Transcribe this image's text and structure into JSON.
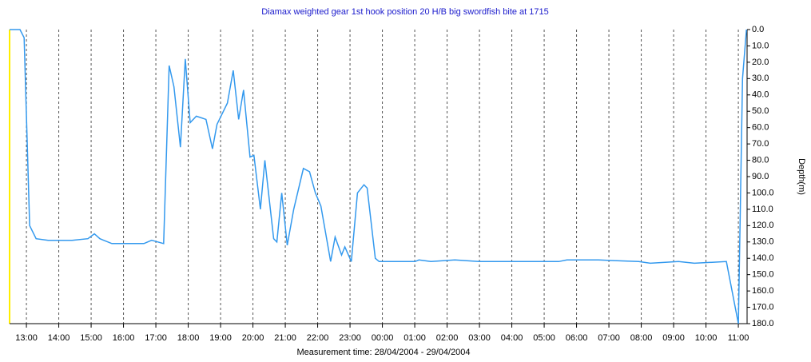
{
  "chart_data": {
    "type": "line",
    "title": "Diamax weighted gear 1st hook position 20 H/B big swordfish bite at 1715",
    "x_label": "Measurement time: 28/04/2004 - 29/04/2004",
    "y_label": "Depth(m)",
    "color": "#3399ee",
    "y_inverted": true,
    "grid": true,
    "xlim": [
      12.48,
      35.27
    ],
    "ylim": [
      0,
      180
    ],
    "xticks": [
      {
        "value": 13,
        "label": "13:00"
      },
      {
        "value": 14,
        "label": "14:00"
      },
      {
        "value": 15,
        "label": "15:00"
      },
      {
        "value": 16,
        "label": "16:00"
      },
      {
        "value": 17,
        "label": "17:00"
      },
      {
        "value": 18,
        "label": "18:00"
      },
      {
        "value": 19,
        "label": "19:00"
      },
      {
        "value": 20,
        "label": "20:00"
      },
      {
        "value": 21,
        "label": "21:00"
      },
      {
        "value": 22,
        "label": "22:00"
      },
      {
        "value": 23,
        "label": "23:00"
      },
      {
        "value": 24,
        "label": "00:00"
      },
      {
        "value": 25,
        "label": "01:00"
      },
      {
        "value": 26,
        "label": "02:00"
      },
      {
        "value": 27,
        "label": "03:00"
      },
      {
        "value": 28,
        "label": "04:00"
      },
      {
        "value": 29,
        "label": "05:00"
      },
      {
        "value": 30,
        "label": "06:00"
      },
      {
        "value": 31,
        "label": "07:00"
      },
      {
        "value": 32,
        "label": "08:00"
      },
      {
        "value": 33,
        "label": "09:00"
      },
      {
        "value": 34,
        "label": "10:00"
      },
      {
        "value": 35,
        "label": "11:00"
      }
    ],
    "yticks": [
      {
        "value": 0,
        "label": "0.0"
      },
      {
        "value": 10,
        "label": "10.0"
      },
      {
        "value": 20,
        "label": "20.0"
      },
      {
        "value": 30,
        "label": "30.0"
      },
      {
        "value": 40,
        "label": "40.0"
      },
      {
        "value": 50,
        "label": "50.0"
      },
      {
        "value": 60,
        "label": "60.0"
      },
      {
        "value": 70,
        "label": "70.0"
      },
      {
        "value": 80,
        "label": "80.0"
      },
      {
        "value": 90,
        "label": "90.0"
      },
      {
        "value": 100,
        "label": "100.0"
      },
      {
        "value": 110,
        "label": "110.0"
      },
      {
        "value": 120,
        "label": "120.0"
      },
      {
        "value": 130,
        "label": "130.0"
      },
      {
        "value": 140,
        "label": "140.0"
      },
      {
        "value": 150,
        "label": "150.0"
      },
      {
        "value": 160,
        "label": "160.0"
      },
      {
        "value": 170,
        "label": "170.0"
      },
      {
        "value": 180,
        "label": "180.0"
      }
    ],
    "x": [
      12.48,
      12.8,
      12.93,
      13.1,
      13.3,
      13.67,
      14.41,
      14.9,
      15.1,
      15.27,
      15.64,
      16.63,
      16.87,
      17.24,
      17.41,
      17.56,
      17.76,
      17.91,
      18.06,
      18.25,
      18.55,
      18.75,
      18.89,
      19.21,
      19.39,
      19.56,
      19.71,
      19.91,
      20.03,
      20.23,
      20.37,
      20.64,
      20.74,
      20.89,
      21.06,
      21.26,
      21.56,
      21.75,
      21.93,
      22.1,
      22.4,
      22.54,
      22.74,
      22.84,
      23.04,
      23.23,
      23.43,
      23.53,
      23.78,
      23.9,
      25.01,
      25.13,
      25.5,
      26.24,
      26.98,
      29.45,
      29.7,
      30.68,
      31.92,
      32.28,
      33.15,
      33.64,
      34.63,
      35.0,
      35.13,
      35.25
    ],
    "values": [
      0,
      0,
      5,
      120,
      128,
      129,
      129,
      128,
      125,
      128,
      131,
      131,
      129,
      131,
      22,
      35,
      72,
      18,
      57,
      53,
      55,
      73,
      58,
      45,
      25,
      55,
      37,
      78,
      77,
      110,
      80,
      128,
      130,
      100,
      132,
      110,
      85,
      87,
      100,
      108,
      142,
      127,
      138,
      133,
      142,
      100,
      95,
      97,
      140,
      142,
      142,
      141,
      142,
      141,
      142,
      142,
      141,
      141,
      142,
      143,
      142,
      143,
      142,
      180,
      30,
      0
    ]
  }
}
